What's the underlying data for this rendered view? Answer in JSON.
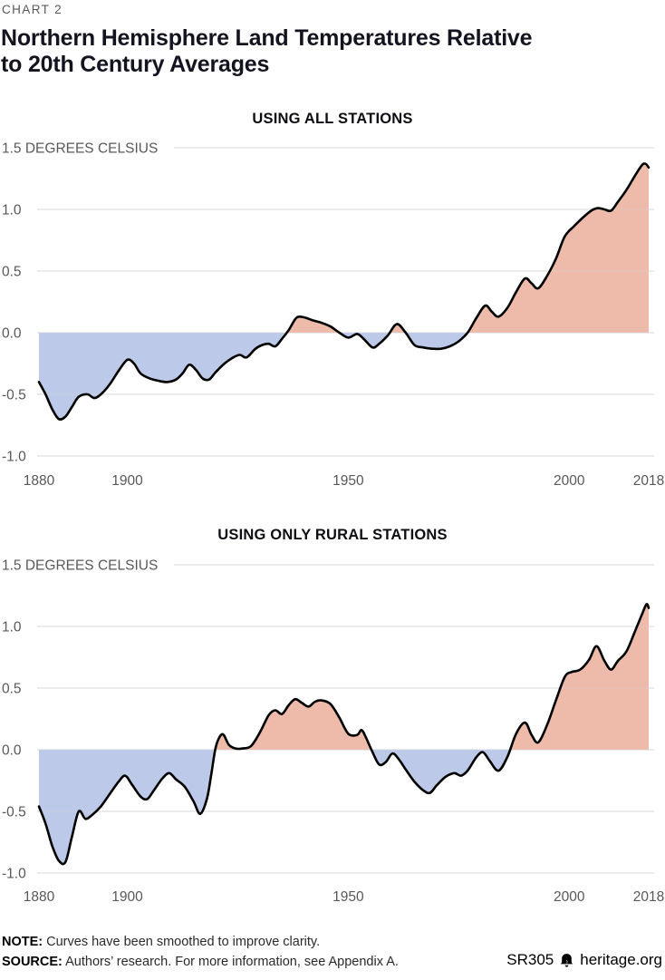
{
  "page": {
    "kicker": "CHART 2",
    "title_line1": "Northern Hemisphere Land Temperatures Relative",
    "title_line2": "to 20th Century Averages"
  },
  "footer": {
    "note_label": "NOTE:",
    "note_text": "Curves have been smoothed to improve clarity.",
    "source_label": "SOURCE:",
    "source_text": "Authors’ research. For more information, see Appendix A.",
    "report_id": "SR305",
    "brand": "heritage.org",
    "brand_icon": "liberty-bell-icon"
  },
  "colors": {
    "positive_fill": "#EEBAAA",
    "negative_fill": "#BCC9E8",
    "line": "#000000",
    "grid": "#D8D8D8",
    "axis_text": "#58585a",
    "title_text": "#131420",
    "kicker_text": "#58585a"
  },
  "chart_data": [
    {
      "type": "area",
      "title": "USING ALL STATIONS",
      "ylabel": "DEGREES CELSIUS",
      "xlim": [
        1880,
        2018
      ],
      "ylim": [
        -1.0,
        1.5
      ],
      "yticks": [
        1.5,
        1.0,
        0.5,
        0.0,
        -0.5,
        -1.0
      ],
      "ytick_labels": [
        "1.5 DEGREES CELSIUS",
        "1.0",
        "0.5",
        "0.0",
        "-0.5",
        "-1.0"
      ],
      "xticks": [
        1880,
        1900,
        1950,
        2000,
        2018
      ],
      "grid": true,
      "points": [
        [
          1880,
          -0.4
        ],
        [
          1881.5,
          -0.5
        ],
        [
          1883,
          -0.62
        ],
        [
          1884.5,
          -0.7
        ],
        [
          1886,
          -0.68
        ],
        [
          1887.5,
          -0.6
        ],
        [
          1889,
          -0.52
        ],
        [
          1891,
          -0.5
        ],
        [
          1892.5,
          -0.53
        ],
        [
          1894,
          -0.5
        ],
        [
          1896,
          -0.42
        ],
        [
          1898,
          -0.31
        ],
        [
          1900,
          -0.22
        ],
        [
          1901.5,
          -0.25
        ],
        [
          1903,
          -0.33
        ],
        [
          1905,
          -0.37
        ],
        [
          1907,
          -0.39
        ],
        [
          1909,
          -0.4
        ],
        [
          1911,
          -0.38
        ],
        [
          1912.5,
          -0.33
        ],
        [
          1914,
          -0.26
        ],
        [
          1915.5,
          -0.3
        ],
        [
          1917,
          -0.37
        ],
        [
          1918.5,
          -0.38
        ],
        [
          1920,
          -0.32
        ],
        [
          1922,
          -0.25
        ],
        [
          1924,
          -0.2
        ],
        [
          1925.5,
          -0.18
        ],
        [
          1927,
          -0.2
        ],
        [
          1929,
          -0.13
        ],
        [
          1930.5,
          -0.1
        ],
        [
          1932,
          -0.09
        ],
        [
          1933.5,
          -0.11
        ],
        [
          1935,
          -0.05
        ],
        [
          1936.5,
          0.02
        ],
        [
          1938,
          0.11
        ],
        [
          1939,
          0.13
        ],
        [
          1940.5,
          0.12
        ],
        [
          1942,
          0.1
        ],
        [
          1944,
          0.08
        ],
        [
          1946,
          0.05
        ],
        [
          1948,
          0.0
        ],
        [
          1950,
          -0.04
        ],
        [
          1952,
          -0.01
        ],
        [
          1953.5,
          -0.05
        ],
        [
          1955.5,
          -0.12
        ],
        [
          1957,
          -0.09
        ],
        [
          1959,
          -0.02
        ],
        [
          1961,
          0.07
        ],
        [
          1963,
          0.0
        ],
        [
          1965,
          -0.1
        ],
        [
          1967,
          -0.12
        ],
        [
          1969,
          -0.13
        ],
        [
          1971,
          -0.13
        ],
        [
          1973,
          -0.11
        ],
        [
          1975,
          -0.07
        ],
        [
          1977,
          0.0
        ],
        [
          1979,
          0.12
        ],
        [
          1981,
          0.22
        ],
        [
          1982.5,
          0.17
        ],
        [
          1984,
          0.13
        ],
        [
          1986,
          0.2
        ],
        [
          1988,
          0.33
        ],
        [
          1990,
          0.44
        ],
        [
          1991.5,
          0.4
        ],
        [
          1993,
          0.36
        ],
        [
          1995,
          0.46
        ],
        [
          1997,
          0.6
        ],
        [
          1999,
          0.78
        ],
        [
          2001,
          0.86
        ],
        [
          2003,
          0.93
        ],
        [
          2005,
          0.99
        ],
        [
          2006.5,
          1.01
        ],
        [
          2008,
          1.0
        ],
        [
          2009.5,
          0.99
        ],
        [
          2011,
          1.06
        ],
        [
          2013,
          1.16
        ],
        [
          2015,
          1.28
        ],
        [
          2016.5,
          1.36
        ],
        [
          2017.3,
          1.37
        ],
        [
          2018,
          1.34
        ]
      ]
    },
    {
      "type": "area",
      "title": "USING ONLY RURAL STATIONS",
      "ylabel": "DEGREES CELSIUS",
      "xlim": [
        1880,
        2018
      ],
      "ylim": [
        -1.0,
        1.5
      ],
      "yticks": [
        1.5,
        1.0,
        0.5,
        0.0,
        -0.5,
        -1.0
      ],
      "ytick_labels": [
        "1.5 DEGREES CELSIUS",
        "1.0",
        "0.5",
        "0.0",
        "-0.5",
        "-1.0"
      ],
      "xticks": [
        1880,
        1900,
        1950,
        2000,
        2018
      ],
      "grid": true,
      "points": [
        [
          1880,
          -0.46
        ],
        [
          1881.5,
          -0.6
        ],
        [
          1883,
          -0.78
        ],
        [
          1884.5,
          -0.9
        ],
        [
          1886,
          -0.91
        ],
        [
          1887.5,
          -0.7
        ],
        [
          1889,
          -0.5
        ],
        [
          1890.5,
          -0.56
        ],
        [
          1892,
          -0.53
        ],
        [
          1894,
          -0.46
        ],
        [
          1896,
          -0.36
        ],
        [
          1898,
          -0.26
        ],
        [
          1899.5,
          -0.21
        ],
        [
          1901,
          -0.28
        ],
        [
          1903,
          -0.38
        ],
        [
          1904.5,
          -0.4
        ],
        [
          1906,
          -0.33
        ],
        [
          1908,
          -0.23
        ],
        [
          1909.5,
          -0.19
        ],
        [
          1911,
          -0.24
        ],
        [
          1913,
          -0.3
        ],
        [
          1915,
          -0.42
        ],
        [
          1916.5,
          -0.52
        ],
        [
          1918,
          -0.4
        ],
        [
          1919,
          -0.2
        ],
        [
          1920,
          0.02
        ],
        [
          1921,
          0.11
        ],
        [
          1921.8,
          0.12
        ],
        [
          1923,
          0.04
        ],
        [
          1924.5,
          0.01
        ],
        [
          1926,
          0.01
        ],
        [
          1928,
          0.03
        ],
        [
          1930,
          0.14
        ],
        [
          1932,
          0.28
        ],
        [
          1933.5,
          0.32
        ],
        [
          1935,
          0.29
        ],
        [
          1936.5,
          0.36
        ],
        [
          1938,
          0.41
        ],
        [
          1939.5,
          0.38
        ],
        [
          1941,
          0.35
        ],
        [
          1942.5,
          0.39
        ],
        [
          1944,
          0.4
        ],
        [
          1946,
          0.37
        ],
        [
          1948,
          0.26
        ],
        [
          1950,
          0.13
        ],
        [
          1952,
          0.12
        ],
        [
          1953,
          0.16
        ],
        [
          1954,
          0.1
        ],
        [
          1955.5,
          -0.02
        ],
        [
          1957,
          -0.12
        ],
        [
          1958.5,
          -0.1
        ],
        [
          1960,
          -0.03
        ],
        [
          1961.5,
          -0.08
        ],
        [
          1963,
          -0.16
        ],
        [
          1965,
          -0.26
        ],
        [
          1967,
          -0.33
        ],
        [
          1968.5,
          -0.35
        ],
        [
          1970,
          -0.29
        ],
        [
          1972,
          -0.22
        ],
        [
          1974,
          -0.19
        ],
        [
          1975.5,
          -0.21
        ],
        [
          1977,
          -0.17
        ],
        [
          1979,
          -0.06
        ],
        [
          1980.5,
          -0.02
        ],
        [
          1982,
          -0.09
        ],
        [
          1984,
          -0.17
        ],
        [
          1986,
          -0.06
        ],
        [
          1988,
          0.13
        ],
        [
          1990,
          0.22
        ],
        [
          1991.5,
          0.12
        ],
        [
          1993,
          0.06
        ],
        [
          1995,
          0.2
        ],
        [
          1997,
          0.4
        ],
        [
          1999,
          0.59
        ],
        [
          2000.5,
          0.63
        ],
        [
          2002.5,
          0.65
        ],
        [
          2004.5,
          0.73
        ],
        [
          2006.2,
          0.84
        ],
        [
          2008,
          0.72
        ],
        [
          2009.5,
          0.65
        ],
        [
          2011,
          0.72
        ],
        [
          2013,
          0.8
        ],
        [
          2015,
          0.97
        ],
        [
          2016.5,
          1.1
        ],
        [
          2017.5,
          1.18
        ],
        [
          2018,
          1.15
        ]
      ]
    }
  ]
}
